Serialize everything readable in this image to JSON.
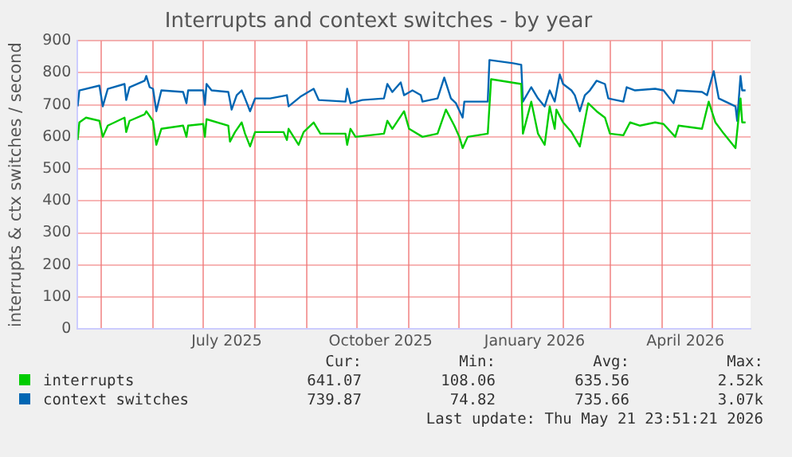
{
  "chart_data": {
    "type": "line",
    "title": "Interrupts and context switches - by year",
    "ylabel": "interrupts & ctx switches / second",
    "xlim": [
      "2025-04-17",
      "2026-05-24"
    ],
    "xticks": [
      {
        "value": "2025-05-01",
        "label": null
      },
      {
        "value": "2025-06-01",
        "label": null
      },
      {
        "value": "2025-07-01",
        "label": null
      },
      {
        "value": "2025-08-01",
        "label": null
      },
      {
        "value": "2025-09-01",
        "label": null
      },
      {
        "value": "2025-10-01",
        "label": null
      },
      {
        "value": "2025-11-01",
        "label": null
      },
      {
        "value": "2025-12-01",
        "label": null
      },
      {
        "value": "2026-01-01",
        "label": null
      },
      {
        "value": "2026-02-01",
        "label": null
      },
      {
        "value": "2026-03-01",
        "label": null
      },
      {
        "value": "2026-04-01",
        "label": null
      },
      {
        "value": "2026-05-01",
        "label": null
      },
      {
        "value": "2025-07-15",
        "label": "July 2025"
      },
      {
        "value": "2025-10-15",
        "label": "October 2025"
      },
      {
        "value": "2026-01-15",
        "label": "January 2026"
      },
      {
        "value": "2026-04-15",
        "label": "April 2026"
      }
    ],
    "ylim": [
      0,
      900
    ],
    "yticks": [
      0,
      100,
      200,
      300,
      400,
      500,
      600,
      700,
      800,
      900
    ],
    "grid": true,
    "legend": "bottom",
    "marker": "none",
    "line_style": "solid",
    "series": [
      {
        "name": "interrupts",
        "color": "#00cc00",
        "x": [
          "2025-04-17",
          "2025-04-18",
          "2025-04-22",
          "2025-04-30",
          "2025-05-02",
          "2025-05-05",
          "2025-05-15",
          "2025-05-16",
          "2025-05-18",
          "2025-05-27",
          "2025-05-28",
          "2025-06-01",
          "2025-06-03",
          "2025-06-06",
          "2025-06-19",
          "2025-06-21",
          "2025-06-22",
          "2025-07-01",
          "2025-07-02",
          "2025-07-03",
          "2025-07-16",
          "2025-07-17",
          "2025-07-20",
          "2025-07-24",
          "2025-07-26",
          "2025-07-29",
          "2025-08-01",
          "2025-08-18",
          "2025-08-20",
          "2025-08-21",
          "2025-08-27",
          "2025-08-30",
          "2025-09-05",
          "2025-09-09",
          "2025-09-24",
          "2025-09-25",
          "2025-09-27",
          "2025-09-30",
          "2025-10-17",
          "2025-10-19",
          "2025-10-22",
          "2025-10-29",
          "2025-11-01",
          "2025-11-09",
          "2025-11-18",
          "2025-11-23",
          "2025-11-28",
          "2025-12-01",
          "2025-12-03",
          "2025-12-06",
          "2025-12-18",
          "2025-12-20",
          "2025-12-26",
          "2026-01-07",
          "2026-01-08",
          "2026-01-13",
          "2026-01-17",
          "2026-01-21",
          "2026-01-24",
          "2026-01-27",
          "2026-01-28",
          "2026-02-01",
          "2026-02-06",
          "2026-02-11",
          "2026-02-16",
          "2026-02-21",
          "2026-02-26",
          "2026-03-01",
          "2026-03-09",
          "2026-03-13",
          "2026-03-19",
          "2026-03-28",
          "2026-04-02",
          "2026-04-09",
          "2026-04-11",
          "2026-04-25",
          "2026-04-29",
          "2026-05-03",
          "2026-05-08",
          "2026-05-15",
          "2026-05-18",
          "2026-05-19",
          "2026-05-21"
        ],
        "values": [
          590,
          645,
          660,
          650,
          600,
          635,
          660,
          615,
          650,
          670,
          680,
          650,
          575,
          625,
          635,
          600,
          635,
          640,
          600,
          655,
          635,
          585,
          615,
          645,
          610,
          570,
          615,
          615,
          590,
          625,
          575,
          615,
          645,
          610,
          610,
          575,
          625,
          600,
          610,
          650,
          625,
          680,
          625,
          600,
          610,
          685,
          635,
          600,
          565,
          600,
          610,
          780,
          775,
          765,
          610,
          710,
          610,
          575,
          695,
          625,
          685,
          645,
          615,
          570,
          705,
          680,
          660,
          610,
          605,
          645,
          635,
          645,
          640,
          600,
          635,
          625,
          710,
          645,
          610,
          565,
          720,
          645,
          645
        ]
      },
      {
        "name": "context switches",
        "color": "#0066b3",
        "x": [
          "2025-04-17",
          "2025-04-18",
          "2025-04-30",
          "2025-05-02",
          "2025-05-05",
          "2025-05-15",
          "2025-05-16",
          "2025-05-18",
          "2025-05-27",
          "2025-05-28",
          "2025-05-30",
          "2025-06-01",
          "2025-06-03",
          "2025-06-06",
          "2025-06-19",
          "2025-06-21",
          "2025-06-22",
          "2025-07-01",
          "2025-07-02",
          "2025-07-03",
          "2025-07-06",
          "2025-07-16",
          "2025-07-18",
          "2025-07-21",
          "2025-07-24",
          "2025-07-26",
          "2025-07-29",
          "2025-08-01",
          "2025-08-10",
          "2025-08-20",
          "2025-08-21",
          "2025-08-28",
          "2025-09-05",
          "2025-09-08",
          "2025-09-24",
          "2025-09-25",
          "2025-09-27",
          "2025-10-04",
          "2025-10-17",
          "2025-10-19",
          "2025-10-22",
          "2025-10-27",
          "2025-10-29",
          "2025-11-03",
          "2025-11-08",
          "2025-11-09",
          "2025-11-18",
          "2025-11-22",
          "2025-11-26",
          "2025-11-29",
          "2025-12-03",
          "2025-12-04",
          "2025-12-18",
          "2025-12-19",
          "2025-12-26",
          "2026-01-02",
          "2026-01-07",
          "2026-01-08",
          "2026-01-13",
          "2026-01-17",
          "2026-01-21",
          "2026-01-24",
          "2026-01-27",
          "2026-01-30",
          "2026-02-01",
          "2026-02-06",
          "2026-02-08",
          "2026-02-11",
          "2026-02-14",
          "2026-02-17",
          "2026-02-21",
          "2026-02-26",
          "2026-02-28",
          "2026-03-09",
          "2026-03-11",
          "2026-03-16",
          "2026-03-28",
          "2026-04-02",
          "2026-04-08",
          "2026-04-10",
          "2026-04-25",
          "2026-04-28",
          "2026-05-02",
          "2026-05-05",
          "2026-05-15",
          "2026-05-16",
          "2026-05-18",
          "2026-05-19",
          "2026-05-21"
        ],
        "values": [
          695,
          745,
          760,
          695,
          750,
          765,
          715,
          755,
          775,
          790,
          755,
          750,
          680,
          745,
          740,
          705,
          745,
          745,
          700,
          765,
          745,
          740,
          685,
          730,
          745,
          720,
          680,
          720,
          720,
          730,
          695,
          725,
          750,
          715,
          710,
          750,
          705,
          715,
          720,
          765,
          740,
          770,
          730,
          745,
          730,
          710,
          720,
          785,
          720,
          705,
          660,
          710,
          710,
          840,
          835,
          830,
          825,
          710,
          755,
          720,
          695,
          745,
          710,
          795,
          765,
          745,
          730,
          680,
          730,
          745,
          775,
          765,
          720,
          710,
          755,
          745,
          750,
          745,
          705,
          745,
          740,
          730,
          805,
          720,
          695,
          650,
          790,
          745,
          745
        ]
      }
    ],
    "annotations": [
      "Cur:",
      "Min:",
      "Avg:",
      "Max:",
      "641.07",
      "108.06",
      "635.56",
      "2.52k",
      "739.87",
      "74.82",
      "735.66",
      "3.07k",
      "Last update: Thu May 21 23:51:21 2026"
    ]
  }
}
